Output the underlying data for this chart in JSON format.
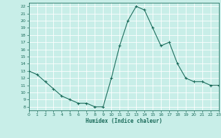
{
  "x": [
    0,
    1,
    2,
    3,
    4,
    5,
    6,
    7,
    8,
    9,
    10,
    11,
    12,
    13,
    14,
    15,
    16,
    17,
    18,
    19,
    20,
    21,
    22,
    23
  ],
  "y": [
    13,
    12.5,
    11.5,
    10.5,
    9.5,
    9.0,
    8.5,
    8.5,
    8.0,
    8.0,
    12.0,
    16.5,
    20.0,
    22.0,
    21.5,
    19.0,
    16.5,
    17.0,
    14.0,
    12.0,
    11.5,
    11.5,
    11.0,
    11.0
  ],
  "xlim": [
    0,
    23
  ],
  "ylim": [
    7.5,
    22.5
  ],
  "yticks": [
    8,
    9,
    10,
    11,
    12,
    13,
    14,
    15,
    16,
    17,
    18,
    19,
    20,
    21,
    22
  ],
  "xticks": [
    0,
    1,
    2,
    3,
    4,
    5,
    6,
    7,
    8,
    9,
    10,
    11,
    12,
    13,
    14,
    15,
    16,
    17,
    18,
    19,
    20,
    21,
    22,
    23
  ],
  "xlabel": "Humidex (Indice chaleur)",
  "line_color": "#1a6b5a",
  "marker": "+",
  "bg_color": "#c8eee8",
  "grid_color": "#ffffff",
  "text_color": "#1a6b5a"
}
